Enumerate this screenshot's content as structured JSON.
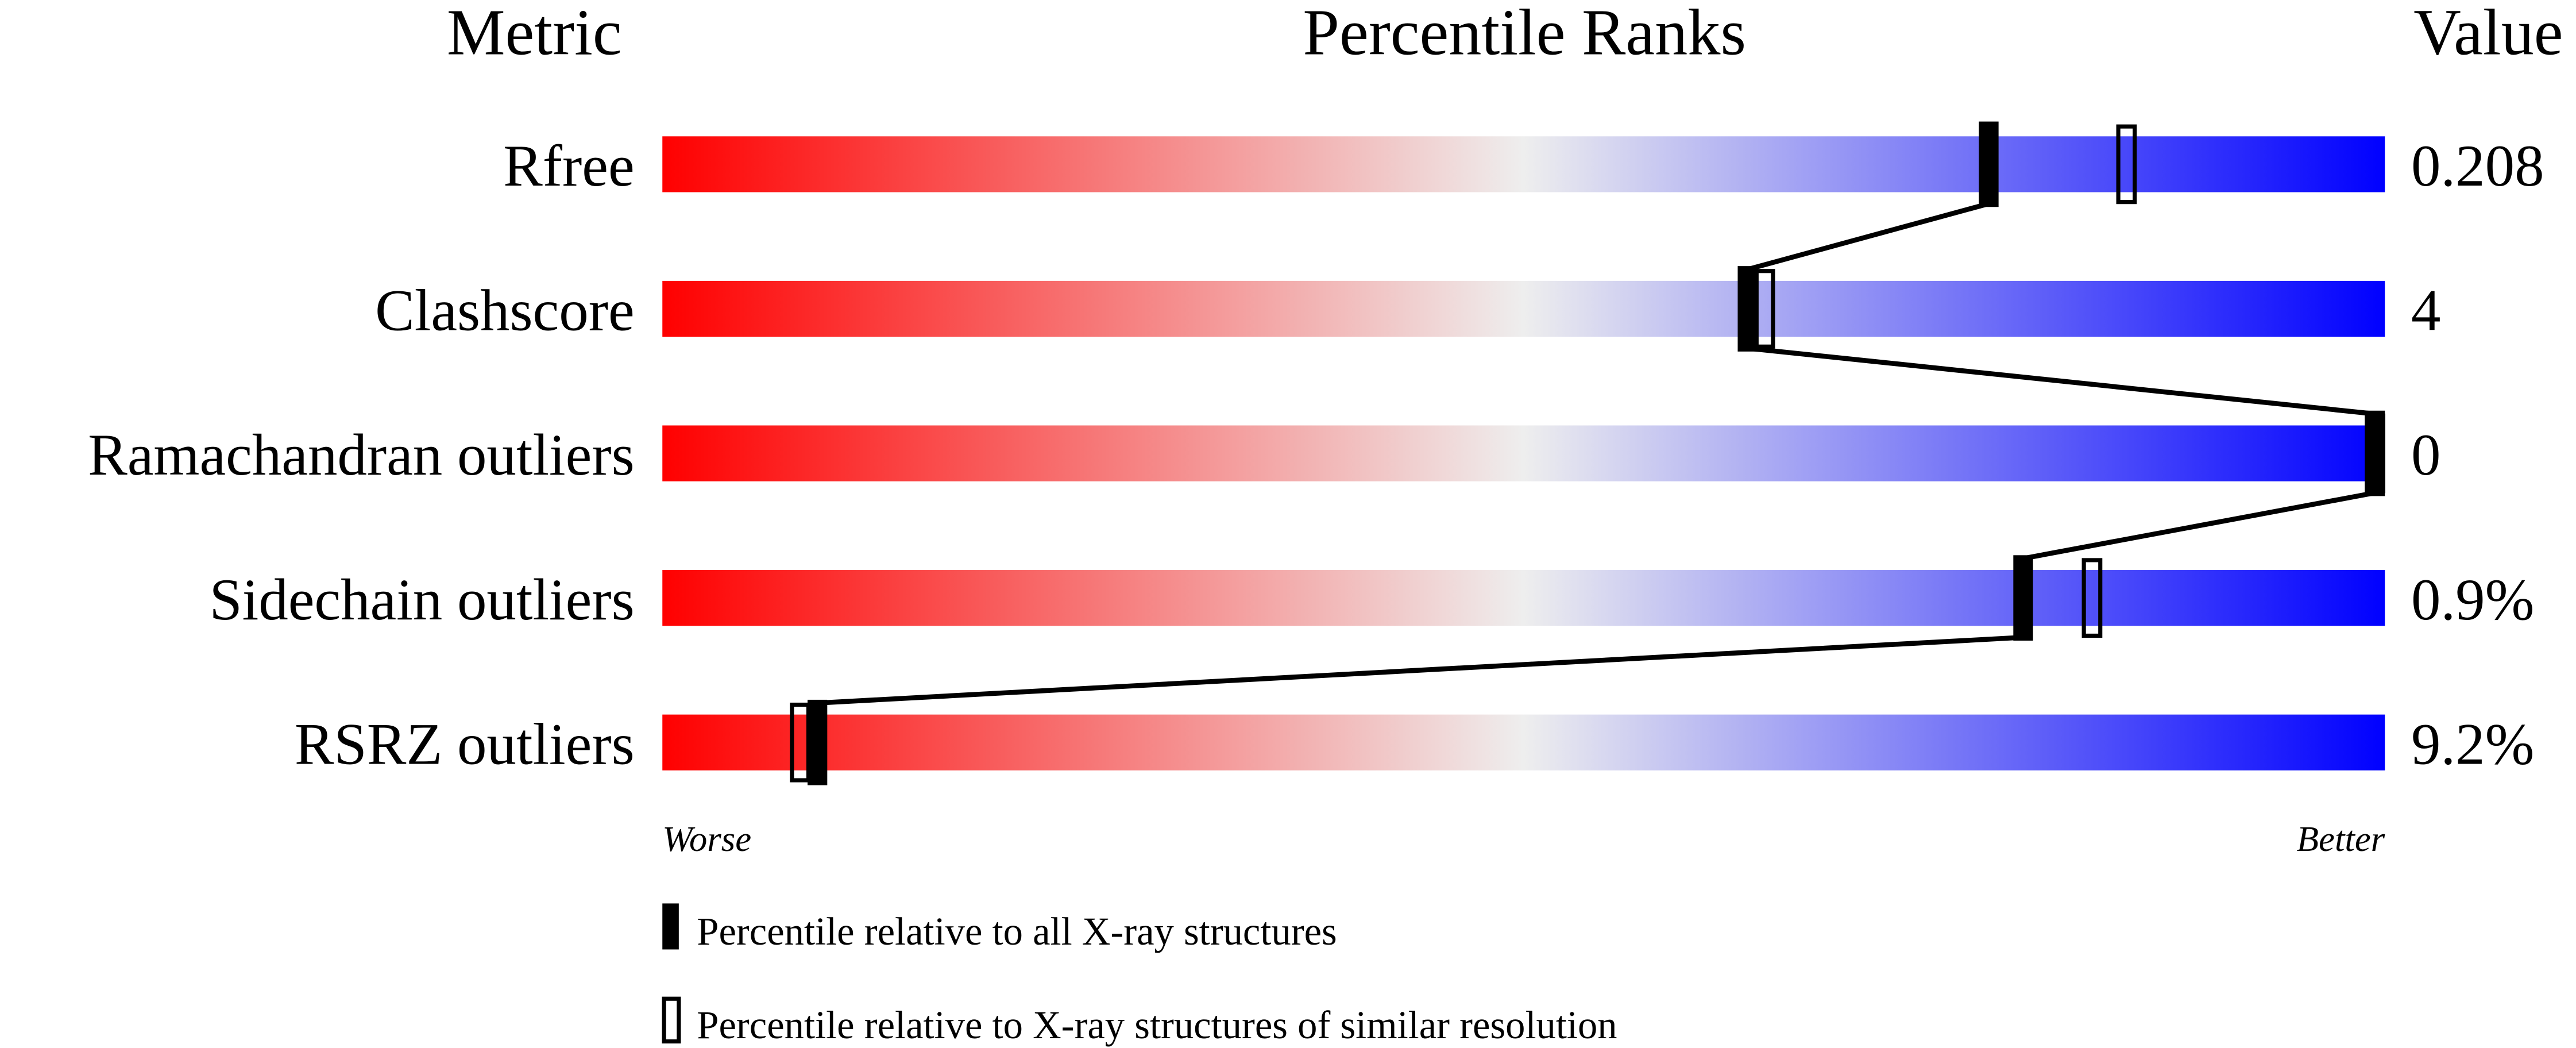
{
  "chart_data": {
    "type": "bar",
    "headers": {
      "metric": "Metric",
      "ranks": "Percentile Ranks",
      "value": "Value"
    },
    "xlim": [
      0,
      100
    ],
    "axis_labels": {
      "worse": "Worse",
      "better": "Better"
    },
    "gradient_colors": {
      "worse": "#ff0000",
      "middle": "#eeeeee",
      "better": "#0000ff"
    },
    "metrics": [
      {
        "name": "Rfree",
        "value": "0.208",
        "percentile_all": 77,
        "percentile_similar": 85
      },
      {
        "name": "Clashscore",
        "value": "4",
        "percentile_all": 63,
        "percentile_similar": 64
      },
      {
        "name": "Ramachandran outliers",
        "value": "0",
        "percentile_all": 100,
        "percentile_similar": 100
      },
      {
        "name": "Sidechain outliers",
        "value": "0.9%",
        "percentile_all": 79,
        "percentile_similar": 83
      },
      {
        "name": "RSRZ outliers",
        "value": "9.2%",
        "percentile_all": 9,
        "percentile_similar": 8
      }
    ],
    "legend": [
      {
        "marker": "filled",
        "label": "Percentile relative to all X-ray structures"
      },
      {
        "marker": "open",
        "label": "Percentile relative to X-ray structures of similar resolution"
      }
    ]
  }
}
